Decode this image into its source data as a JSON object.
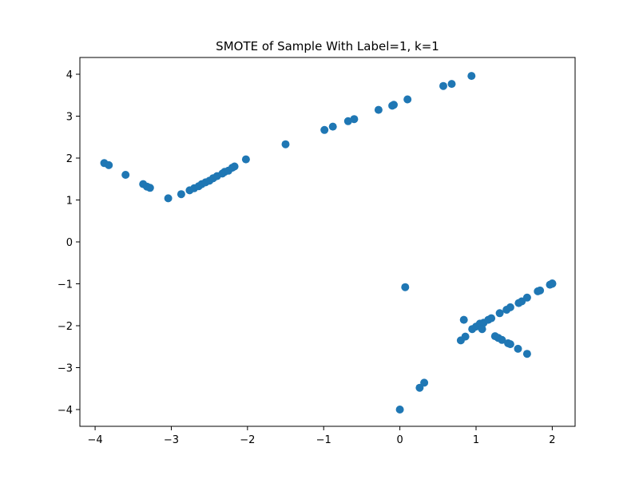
{
  "chart_data": {
    "type": "scatter",
    "title": "SMOTE of Sample With Label=1, k=1",
    "xlabel": "",
    "ylabel": "",
    "xlim": [
      -4.2,
      2.3
    ],
    "ylim": [
      -4.4,
      4.4
    ],
    "xticks": [
      -4,
      -3,
      -2,
      -1,
      0,
      1,
      2
    ],
    "yticks": [
      -4,
      -3,
      -2,
      -1,
      0,
      1,
      2,
      3,
      4
    ],
    "xtick_labels": [
      "−4",
      "−3",
      "−2",
      "−1",
      "0",
      "1",
      "2"
    ],
    "ytick_labels": [
      "−4",
      "−3",
      "−2",
      "−1",
      "0",
      "1",
      "2",
      "3",
      "4"
    ],
    "grid": false,
    "marker_color": "#1f77b4",
    "points": [
      [
        -3.88,
        1.88
      ],
      [
        -3.82,
        1.83
      ],
      [
        -3.6,
        1.6
      ],
      [
        -3.37,
        1.38
      ],
      [
        -3.32,
        1.32
      ],
      [
        -3.28,
        1.29
      ],
      [
        -3.04,
        1.04
      ],
      [
        -2.87,
        1.14
      ],
      [
        -2.76,
        1.23
      ],
      [
        -2.7,
        1.28
      ],
      [
        -2.64,
        1.33
      ],
      [
        -2.6,
        1.38
      ],
      [
        -2.55,
        1.42
      ],
      [
        -2.5,
        1.46
      ],
      [
        -2.45,
        1.52
      ],
      [
        -2.4,
        1.57
      ],
      [
        -2.33,
        1.63
      ],
      [
        -2.3,
        1.67
      ],
      [
        -2.25,
        1.7
      ],
      [
        -2.2,
        1.77
      ],
      [
        -2.17,
        1.8
      ],
      [
        -2.02,
        1.97
      ],
      [
        -1.5,
        2.33
      ],
      [
        -0.99,
        2.67
      ],
      [
        -0.88,
        2.75
      ],
      [
        -0.68,
        2.88
      ],
      [
        -0.6,
        2.93
      ],
      [
        -0.28,
        3.15
      ],
      [
        -0.1,
        3.25
      ],
      [
        -0.08,
        3.27
      ],
      [
        0.1,
        3.4
      ],
      [
        0.57,
        3.72
      ],
      [
        0.68,
        3.77
      ],
      [
        0.94,
        3.96
      ],
      [
        0.07,
        -1.08
      ],
      [
        0.0,
        -4.0
      ],
      [
        0.26,
        -3.48
      ],
      [
        0.32,
        -3.36
      ],
      [
        0.8,
        -2.35
      ],
      [
        0.86,
        -2.26
      ],
      [
        0.84,
        -1.86
      ],
      [
        0.95,
        -2.08
      ],
      [
        1.0,
        -2.02
      ],
      [
        1.05,
        -1.95
      ],
      [
        1.1,
        -1.93
      ],
      [
        1.08,
        -2.08
      ],
      [
        1.16,
        -1.86
      ],
      [
        1.2,
        -1.82
      ],
      [
        1.31,
        -1.7
      ],
      [
        1.4,
        -1.62
      ],
      [
        1.45,
        -1.56
      ],
      [
        1.56,
        -1.46
      ],
      [
        1.6,
        -1.42
      ],
      [
        1.67,
        -1.33
      ],
      [
        1.81,
        -1.18
      ],
      [
        1.84,
        -1.16
      ],
      [
        1.97,
        -1.02
      ],
      [
        2.0,
        -1.0
      ],
      [
        2.0,
        -0.99
      ],
      [
        1.25,
        -2.25
      ],
      [
        1.29,
        -2.29
      ],
      [
        1.34,
        -2.34
      ],
      [
        1.42,
        -2.42
      ],
      [
        1.45,
        -2.44
      ],
      [
        1.55,
        -2.55
      ],
      [
        1.67,
        -2.67
      ]
    ]
  }
}
